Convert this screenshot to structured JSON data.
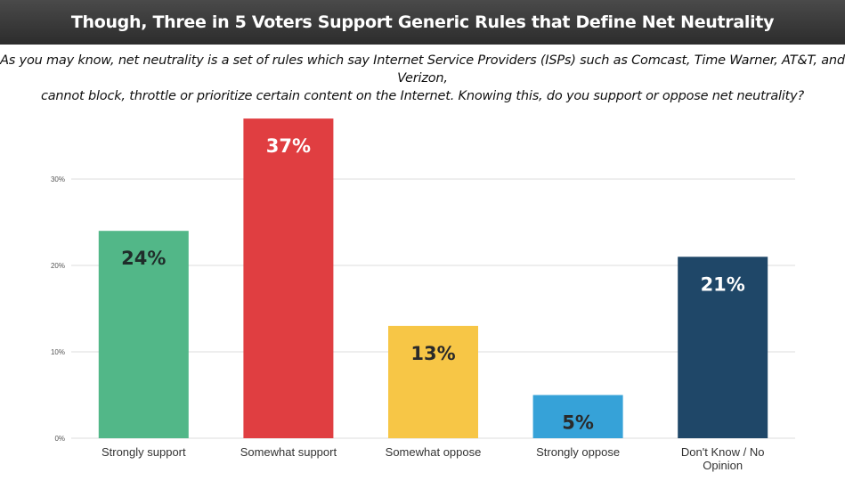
{
  "header": {
    "title": "Though, Three in 5 Voters Support Generic Rules that Define Net Neutrality"
  },
  "question": {
    "line1": "As you may know, net neutrality is a set of rules which say Internet Service Providers (ISPs) such as Comcast, Time Warner, AT&T, and Verizon,",
    "line2": "cannot block, throttle or prioritize certain content on the Internet. Knowing this, do you support or oppose net neutrality?"
  },
  "chart_data": {
    "type": "bar",
    "title": "Though, Three in 5 Voters Support Generic Rules that Define Net Neutrality",
    "xlabel": "",
    "ylabel": "",
    "categories": [
      "Strongly support",
      "Somewhat support",
      "Somewhat oppose",
      "Strongly oppose",
      "Don't Know / No Opinion"
    ],
    "values": [
      24,
      37,
      13,
      5,
      21
    ],
    "value_labels": [
      "24%",
      "37%",
      "13%",
      "5%",
      "21%"
    ],
    "colors": [
      "#52b788",
      "#e03e41",
      "#f7c646",
      "#36a2d8",
      "#1f4768"
    ],
    "label_colors": [
      "#1f2d2a",
      "#ffffff",
      "#2a2a2a",
      "#2a2a2a",
      "#ffffff"
    ],
    "yticks": [
      0,
      10,
      20,
      30
    ],
    "ytick_labels": [
      "0%",
      "10%",
      "20%",
      "30%"
    ],
    "ylim": [
      0,
      37
    ],
    "grid": true,
    "legend": "none"
  }
}
